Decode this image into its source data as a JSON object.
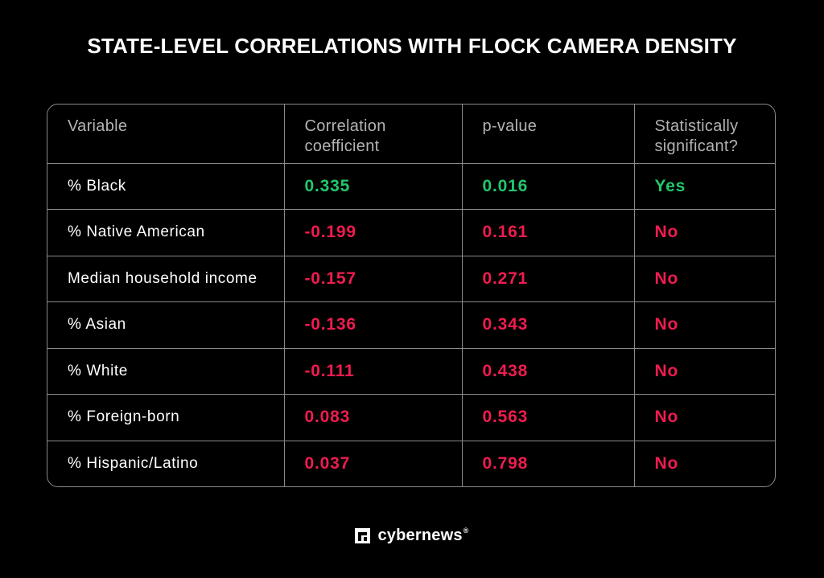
{
  "chart_data": {
    "type": "table",
    "title": "STATE-LEVEL CORRELATIONS WITH FLOCK CAMERA DENSITY",
    "columns": [
      "Variable",
      "Correlation coefficient",
      "p-value",
      "Statistically significant?"
    ],
    "rows": [
      {
        "variable": "% Black",
        "coefficient": "0.335",
        "p_value": "0.016",
        "significant": "Yes"
      },
      {
        "variable": "% Native American",
        "coefficient": "-0.199",
        "p_value": "0.161",
        "significant": "No"
      },
      {
        "variable": "Median household income",
        "coefficient": "-0.157",
        "p_value": "0.271",
        "significant": "No"
      },
      {
        "variable": "% Asian",
        "coefficient": "-0.136",
        "p_value": "0.343",
        "significant": "No"
      },
      {
        "variable": "% White",
        "coefficient": "-0.111",
        "p_value": "0.438",
        "significant": "No"
      },
      {
        "variable": "% Foreign-born",
        "coefficient": "0.083",
        "p_value": "0.563",
        "significant": "No"
      },
      {
        "variable": "% Hispanic/Latino",
        "coefficient": "0.037",
        "p_value": "0.798",
        "significant": "No"
      }
    ],
    "colors": {
      "significant": "#22c76b",
      "not_significant": "#ef1c4f",
      "header_text": "#b3b3b3",
      "border": "#8a8a8a",
      "background": "#000000"
    }
  },
  "branding": {
    "logo_icon": "cybernews-logo-icon",
    "logo_text": "cybernews",
    "registered_mark": "®"
  }
}
